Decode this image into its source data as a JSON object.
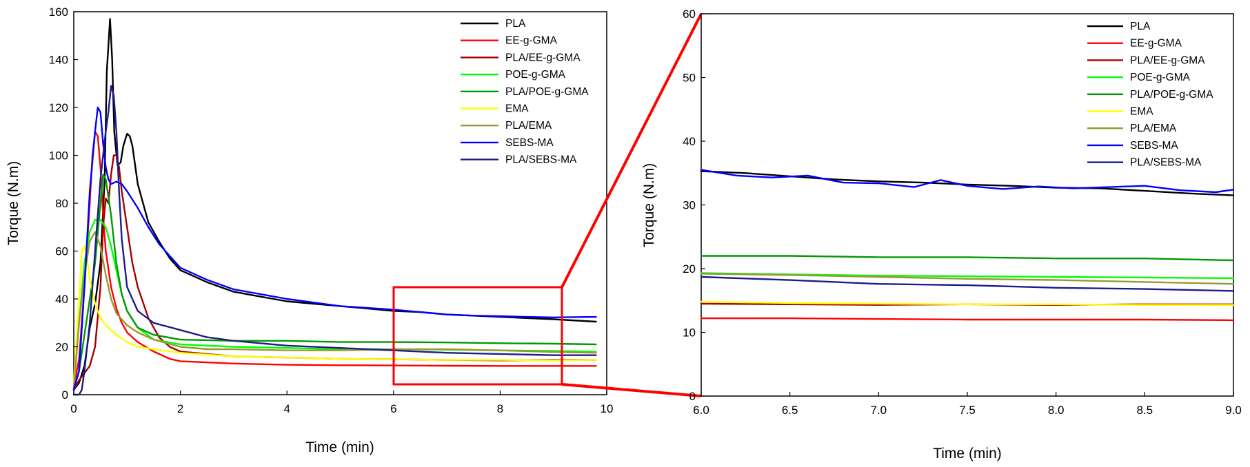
{
  "chart_data": [
    {
      "type": "line",
      "panel": "full",
      "xlabel": "Time (min)",
      "ylabel": "Torque (N.m)",
      "xlim": [
        0,
        10
      ],
      "ylim": [
        0,
        160
      ],
      "xticks": [
        0,
        2,
        4,
        6,
        8,
        10
      ],
      "yticks": [
        0,
        20,
        40,
        60,
        80,
        100,
        120,
        140,
        160
      ],
      "legend_position": "top-right",
      "series": [
        {
          "name": "PLA",
          "color": "#000000",
          "x": [
            0,
            0.1,
            0.2,
            0.3,
            0.4,
            0.5,
            0.58,
            0.62,
            0.68,
            0.72,
            0.76,
            0.82,
            0.88,
            0.93,
            1.0,
            1.05,
            1.1,
            1.2,
            1.4,
            1.6,
            1.8,
            2.0,
            2.5,
            3.0,
            4.0,
            5.0,
            6.0,
            6.5,
            7.0,
            7.5,
            8.0,
            8.5,
            9.0,
            9.8
          ],
          "y": [
            2,
            5,
            12,
            28,
            38,
            55,
            90,
            135,
            157,
            140,
            110,
            96,
            97,
            104,
            109,
            108,
            104,
            88,
            72,
            64,
            57,
            52,
            47,
            43,
            39,
            37,
            35,
            34.5,
            33.5,
            33,
            32.5,
            32,
            31.5,
            30.5
          ]
        },
        {
          "name": "EE-g-GMA",
          "color": "#ff0000",
          "x": [
            0,
            0.1,
            0.2,
            0.3,
            0.35,
            0.4,
            0.45,
            0.5,
            0.55,
            0.6,
            0.7,
            0.8,
            0.9,
            1.0,
            1.2,
            1.5,
            1.8,
            2.0,
            3.0,
            4.0,
            5.0,
            6.0,
            7.0,
            8.0,
            9.0,
            9.8
          ],
          "y": [
            3,
            15,
            45,
            80,
            100,
            110,
            108,
            95,
            75,
            60,
            45,
            36,
            30,
            26,
            22,
            18,
            15,
            14,
            13,
            12.5,
            12.3,
            12.2,
            12.1,
            12,
            12,
            12
          ]
        },
        {
          "name": "PLA/EE-g-GMA",
          "color": "#a50000",
          "x": [
            0,
            0.1,
            0.2,
            0.3,
            0.4,
            0.5,
            0.55,
            0.6,
            0.65,
            0.7,
            0.75,
            0.8,
            0.85,
            0.9,
            1.0,
            1.1,
            1.2,
            1.4,
            1.6,
            1.8,
            2.0,
            3.0,
            4.0,
            5.0,
            6.0,
            7.0,
            8.0,
            9.0,
            9.8
          ],
          "y": [
            2,
            6,
            9,
            12,
            20,
            45,
            70,
            82,
            80,
            92,
            100,
            100,
            95,
            85,
            70,
            55,
            45,
            32,
            24,
            20,
            18,
            16,
            15.5,
            15,
            14.8,
            14.5,
            14.3,
            14.5,
            14.5
          ]
        },
        {
          "name": "POE-g-GMA",
          "color": "#00ff00",
          "x": [
            0,
            0.1,
            0.2,
            0.3,
            0.4,
            0.5,
            0.6,
            0.7,
            0.8,
            0.9,
            1.0,
            1.2,
            1.5,
            2.0,
            3.0,
            4.0,
            5.0,
            6.0,
            7.0,
            8.0,
            9.0,
            9.8
          ],
          "y": [
            3,
            30,
            55,
            68,
            73,
            73,
            70,
            62,
            52,
            42,
            35,
            28,
            23,
            21,
            20,
            19.5,
            19,
            19,
            18.8,
            18.5,
            18.3,
            18
          ]
        },
        {
          "name": "PLA/POE-g-GMA",
          "color": "#009a00",
          "x": [
            0,
            0.1,
            0.2,
            0.3,
            0.4,
            0.5,
            0.55,
            0.6,
            0.7,
            0.8,
            0.9,
            1.0,
            1.2,
            1.5,
            2.0,
            3.0,
            4.0,
            5.0,
            6.0,
            7.0,
            8.0,
            9.0,
            9.8
          ],
          "y": [
            2,
            10,
            25,
            40,
            55,
            80,
            92,
            90,
            75,
            55,
            42,
            35,
            28,
            25,
            23,
            22.5,
            22.5,
            22,
            22,
            21.8,
            21.5,
            21.3,
            21
          ]
        },
        {
          "name": "EMA",
          "color": "#ffff00",
          "x": [
            0,
            0.1,
            0.15,
            0.2,
            0.25,
            0.3,
            0.4,
            0.5,
            0.6,
            0.7,
            0.8,
            1.0,
            1.2,
            1.5,
            2.0,
            3.0,
            4.0,
            5.0,
            6.0,
            7.0,
            8.0,
            9.0,
            9.8
          ],
          "y": [
            5,
            40,
            60,
            62,
            57,
            48,
            38,
            32,
            29,
            27,
            25,
            22,
            20,
            19,
            17.5,
            16,
            15.5,
            15,
            14.8,
            14.5,
            14.5,
            14.3,
            14.5
          ]
        },
        {
          "name": "PLA/EMA",
          "color": "#999933",
          "x": [
            0,
            0.1,
            0.2,
            0.3,
            0.4,
            0.5,
            0.6,
            0.7,
            0.8,
            1.0,
            1.2,
            1.5,
            2.0,
            2.5,
            3.0,
            4.0,
            5.0,
            6.0,
            7.0,
            8.0,
            9.0,
            9.8
          ],
          "y": [
            3,
            30,
            50,
            64,
            68,
            62,
            50,
            40,
            34,
            29,
            26,
            23,
            20,
            19,
            19,
            18.5,
            18.5,
            19,
            19,
            18.5,
            17.8,
            17.5
          ]
        },
        {
          "name": "SEBS-MA",
          "color": "#0000ff",
          "x": [
            0,
            0.1,
            0.2,
            0.3,
            0.4,
            0.45,
            0.5,
            0.55,
            0.6,
            0.65,
            0.7,
            0.8,
            0.9,
            1.0,
            1.2,
            1.4,
            1.6,
            1.8,
            2.0,
            2.5,
            3.0,
            3.5,
            4.0,
            5.0,
            6.0,
            6.5,
            7.0,
            7.5,
            8.0,
            8.5,
            9.0,
            9.8
          ],
          "y": [
            2,
            10,
            45,
            85,
            110,
            120,
            118,
            105,
            95,
            90,
            88,
            89,
            88,
            85,
            78,
            70,
            63,
            58,
            53,
            48,
            44,
            42,
            40,
            37,
            35.5,
            34.5,
            33.5,
            33,
            32.8,
            32.5,
            32.3,
            32.5
          ]
        },
        {
          "name": "PLA/SEBS-MA",
          "color": "#1c1c8c",
          "x": [
            0,
            0.1,
            0.15,
            0.2,
            0.3,
            0.4,
            0.5,
            0.55,
            0.6,
            0.65,
            0.7,
            0.75,
            0.8,
            0.85,
            0.9,
            1.0,
            1.2,
            1.5,
            2.0,
            2.5,
            3.0,
            4.0,
            5.0,
            6.0,
            7.0,
            8.0,
            9.0,
            9.8
          ],
          "y": [
            0,
            0,
            2,
            10,
            30,
            60,
            90,
            100,
            110,
            118,
            129,
            125,
            110,
            85,
            65,
            45,
            35,
            30,
            27,
            24,
            22.5,
            20.5,
            19.5,
            18.5,
            17.5,
            17,
            16.5,
            16.5
          ]
        }
      ]
    },
    {
      "type": "line",
      "panel": "zoom",
      "xlabel": "Time (min)",
      "ylabel": "Torque (N.m)",
      "xlim": [
        6.0,
        9.0
      ],
      "ylim": [
        0,
        60
      ],
      "xticks": [
        "6.0",
        "6.5",
        "7.0",
        "7.5",
        "8.0",
        "8.5",
        "9.0"
      ],
      "yticks": [
        "0",
        "10",
        "20",
        "30",
        "40",
        "50",
        "60"
      ],
      "legend_position": "top-right",
      "series": [
        {
          "name": "PLA",
          "color": "#000000",
          "x": [
            6.0,
            6.25,
            6.5,
            6.75,
            7.0,
            7.25,
            7.5,
            7.75,
            8.0,
            8.25,
            8.5,
            8.75,
            9.0
          ],
          "y": [
            35.3,
            35.0,
            34.5,
            34.0,
            33.7,
            33.5,
            33.2,
            33.0,
            32.7,
            32.6,
            32.2,
            31.8,
            31.5
          ]
        },
        {
          "name": "EE-g-GMA",
          "color": "#ff0000",
          "x": [
            6.0,
            6.5,
            7.0,
            7.5,
            8.0,
            8.5,
            9.0
          ],
          "y": [
            12.2,
            12.2,
            12.1,
            12.0,
            12.0,
            12.0,
            11.9
          ]
        },
        {
          "name": "PLA/EE-g-GMA",
          "color": "#a50000",
          "x": [
            6.0,
            6.5,
            7.0,
            7.5,
            8.0,
            8.5,
            9.0
          ],
          "y": [
            14.5,
            14.4,
            14.3,
            14.4,
            14.3,
            14.4,
            14.4
          ]
        },
        {
          "name": "POE-g-GMA",
          "color": "#00ff00",
          "x": [
            6.0,
            6.5,
            7.0,
            7.5,
            8.0,
            8.5,
            9.0
          ],
          "y": [
            19.3,
            19.1,
            18.9,
            18.8,
            18.7,
            18.6,
            18.5
          ]
        },
        {
          "name": "PLA/POE-g-GMA",
          "color": "#009a00",
          "x": [
            6.0,
            6.5,
            7.0,
            7.5,
            8.0,
            8.5,
            9.0
          ],
          "y": [
            22.0,
            22.0,
            21.8,
            21.8,
            21.6,
            21.6,
            21.3
          ]
        },
        {
          "name": "EMA",
          "color": "#ffff00",
          "x": [
            6.0,
            6.5,
            7.0,
            7.5,
            8.0,
            8.5,
            9.0
          ],
          "y": [
            14.8,
            14.6,
            14.5,
            14.4,
            14.4,
            14.3,
            14.3
          ]
        },
        {
          "name": "PLA/EMA",
          "color": "#999933",
          "x": [
            6.0,
            6.5,
            7.0,
            7.5,
            8.0,
            8.5,
            9.0
          ],
          "y": [
            19.2,
            19.0,
            18.7,
            18.4,
            18.2,
            17.9,
            17.6
          ]
        },
        {
          "name": "SEBS-MA",
          "color": "#0000ff",
          "x": [
            6.0,
            6.2,
            6.4,
            6.6,
            6.8,
            7.0,
            7.2,
            7.35,
            7.5,
            7.7,
            7.9,
            8.1,
            8.3,
            8.5,
            8.7,
            8.9,
            9.0
          ],
          "y": [
            35.5,
            34.6,
            34.3,
            34.6,
            33.5,
            33.4,
            32.8,
            33.9,
            33.0,
            32.5,
            32.9,
            32.6,
            32.8,
            33.0,
            32.3,
            32.0,
            32.4
          ]
        },
        {
          "name": "PLA/SEBS-MA",
          "color": "#1c1c8c",
          "x": [
            6.0,
            6.5,
            7.0,
            7.5,
            8.0,
            8.5,
            9.0
          ],
          "y": [
            18.7,
            18.2,
            17.6,
            17.4,
            17.0,
            16.8,
            16.5
          ]
        }
      ]
    }
  ]
}
